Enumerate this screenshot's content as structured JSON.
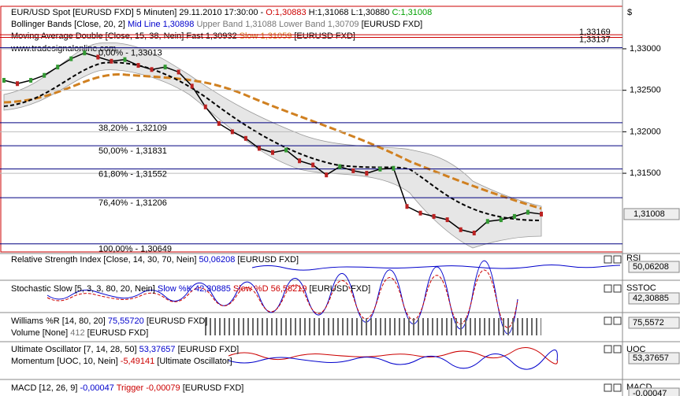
{
  "chart_data": {
    "type": "line",
    "header": [
      {
        "text": "EUR/USD Spot [EURUSD FXD]  5 Minuten] 29.11.2010 17:30:00 - ",
        "color": "#000000"
      },
      {
        "text": "O:1,30883 ",
        "color": "#cc0000"
      },
      {
        "text": "H:1,31068 L:1,30880 ",
        "color": "#000000"
      },
      {
        "text": "C:1,31008",
        "color": "#00a000"
      }
    ],
    "legends": [
      [
        {
          "text": "Bollinger Bands [Close, 20, 2] ",
          "color": "#000000"
        },
        {
          "text": "Mid Line 1,30898 ",
          "color": "#0000cc"
        },
        {
          "text": "Upper Band 1,31088 Lower Band 1,30709 ",
          "color": "#777777"
        },
        {
          "text": "[EURUSD FXD]",
          "color": "#000000"
        }
      ],
      [
        {
          "text": "Moving Average Double [Close, 15, 38, Nein] ",
          "color": "#000000"
        },
        {
          "text": "Fast 1,30932 ",
          "color": "#000000"
        },
        {
          "text": "Slow 1,31059 ",
          "color": "#d08020"
        },
        {
          "text": "[EURUSD FXD]",
          "color": "#000000"
        }
      ]
    ],
    "watermark": "www.tradesignalonline.com",
    "currency": "$",
    "ylim": [
      1.30552,
      1.33512
    ],
    "yticks": [
      {
        "value": 1.33,
        "label": "1,33000"
      },
      {
        "value": 1.325,
        "label": "1,32500"
      },
      {
        "value": 1.32,
        "label": "1,32000"
      },
      {
        "value": 1.315,
        "label": "1,31500"
      }
    ],
    "last_price": {
      "value": 1.31008,
      "label": "1,31008"
    },
    "red_levels": [
      {
        "value": 1.33169,
        "label": "1,33169"
      },
      {
        "value": 1.33137,
        "label": "1,33137"
      }
    ],
    "fib_levels": [
      {
        "value": 1.33013,
        "label": "0,00% - 1,33013"
      },
      {
        "value": 1.32109,
        "label": "38,20% - 1,32109"
      },
      {
        "value": 1.31831,
        "label": "50,00% - 1,31831"
      },
      {
        "value": 1.31552,
        "label": "61,80% - 1,31552"
      },
      {
        "value": 1.31206,
        "label": "76,40% - 1,31206"
      },
      {
        "value": 1.30649,
        "label": "100,00% - 1,30649"
      }
    ],
    "closes": [
      1.3262,
      1.3258,
      1.3262,
      1.3268,
      1.3278,
      1.3288,
      1.3295,
      1.329,
      1.3285,
      1.3287,
      1.328,
      1.3275,
      1.3278,
      1.3272,
      1.3255,
      1.323,
      1.321,
      1.32,
      1.3192,
      1.318,
      1.3175,
      1.3178,
      1.3165,
      1.316,
      1.3148,
      1.3158,
      1.3153,
      1.315,
      1.3155,
      1.3156,
      1.311,
      1.3102,
      1.3098,
      1.3094,
      1.3082,
      1.3078,
      1.3092,
      1.3094,
      1.3098,
      1.3103,
      1.31008
    ],
    "panels": [
      {
        "legend": [
          {
            "text": "Relative Strength Index [Close, 14, 30, 70, Nein] ",
            "color": "#000000"
          },
          {
            "text": "50,06208 ",
            "color": "#0000cc"
          },
          {
            "text": "[EURUSD FXD]",
            "color": "#000000"
          }
        ],
        "tag": "RSI",
        "value": "50,06208"
      },
      {
        "legend": [
          {
            "text": "Stochastic Slow [5, 3, 3, 80, 20, Nein] ",
            "color": "#000000"
          },
          {
            "text": "Slow %K 42,30885 ",
            "color": "#0000cc"
          },
          {
            "text": "Slow %D 56,58219 ",
            "color": "#cc0000"
          },
          {
            "text": "[EURUSD FXD]",
            "color": "#000000"
          }
        ],
        "tag": "SSTOC",
        "value": "42,30885"
      },
      {
        "legend": [
          {
            "text": "Williams %R [14, 80, 20] ",
            "color": "#000000"
          },
          {
            "text": "75,55720 ",
            "color": "#0000cc"
          },
          {
            "text": "[EURUSD FXD]",
            "color": "#000000"
          }
        ],
        "legend2": [
          {
            "text": "Volume [None] ",
            "color": "#000000"
          },
          {
            "text": "412 ",
            "color": "#777777"
          },
          {
            "text": "[EURUSD FXD]",
            "color": "#000000"
          }
        ],
        "value": "75,5572"
      },
      {
        "legend": [
          {
            "text": "Ultimate Oscillator [7, 14, 28, 50] ",
            "color": "#000000"
          },
          {
            "text": "53,37657 ",
            "color": "#0000cc"
          },
          {
            "text": "[EURUSD FXD]",
            "color": "#000000"
          }
        ],
        "legend2": [
          {
            "text": "Momentum [UOC, 10, Nein] ",
            "color": "#000000"
          },
          {
            "text": "-5,49141 ",
            "color": "#cc0000"
          },
          {
            "text": "[Ultimate Oscillator]",
            "color": "#000000"
          }
        ],
        "tag": "UOC",
        "value": "53,37657"
      },
      {
        "legend": [
          {
            "text": "MACD [12, 26, 9] ",
            "color": "#000000"
          },
          {
            "text": "-0,00047 ",
            "color": "#0000cc"
          },
          {
            "text": "Trigger ",
            "color": "#cc0000"
          },
          {
            "text": "-0,00079 ",
            "color": "#cc0000"
          },
          {
            "text": "[EURUSD FXD]",
            "color": "#000000"
          }
        ],
        "tag": "MACD",
        "value": "-0,00047"
      }
    ]
  }
}
